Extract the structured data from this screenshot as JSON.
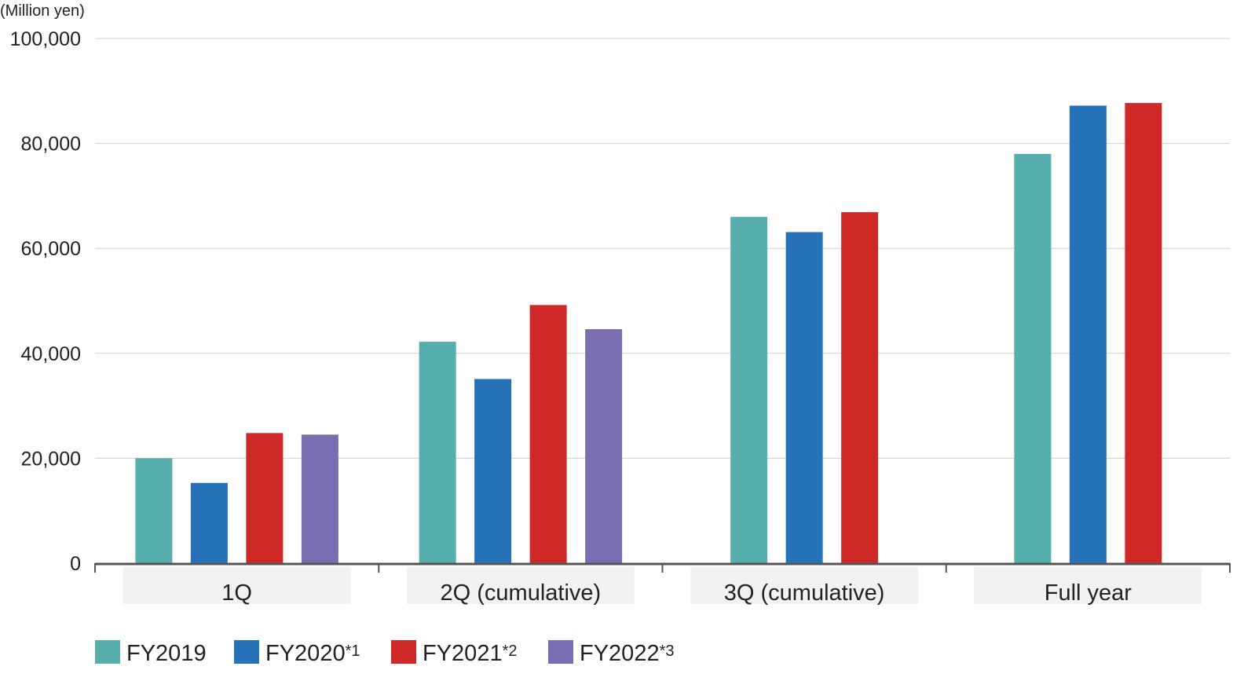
{
  "chart_data": {
    "type": "bar",
    "title": "",
    "xlabel": "",
    "ylabel": "(Million yen)",
    "ylim": [
      0,
      100000
    ],
    "yticks": [
      0,
      20000,
      40000,
      60000,
      80000,
      100000
    ],
    "ytick_labels": [
      "0",
      "20,000",
      "40,000",
      "60,000",
      "80,000",
      "100,000"
    ],
    "grid": true,
    "legend_position": "bottom-left",
    "categories": [
      "1Q",
      "2Q (cumulative)",
      "3Q (cumulative)",
      "Full year"
    ],
    "series": [
      {
        "name": "FY2019",
        "note": "",
        "color": "#57AFAD",
        "values": [
          20000,
          42200,
          66000,
          78000
        ]
      },
      {
        "name": "FY2020",
        "note": "*1",
        "color": "#2672B8",
        "values": [
          15300,
          35100,
          63100,
          87200
        ]
      },
      {
        "name": "FY2021",
        "note": "*2",
        "color": "#CE2827",
        "values": [
          24800,
          49200,
          66900,
          87700
        ]
      },
      {
        "name": "FY2022",
        "note": "*3",
        "color": "#7A6DB1",
        "values": [
          24500,
          44600,
          null,
          null
        ]
      }
    ]
  }
}
